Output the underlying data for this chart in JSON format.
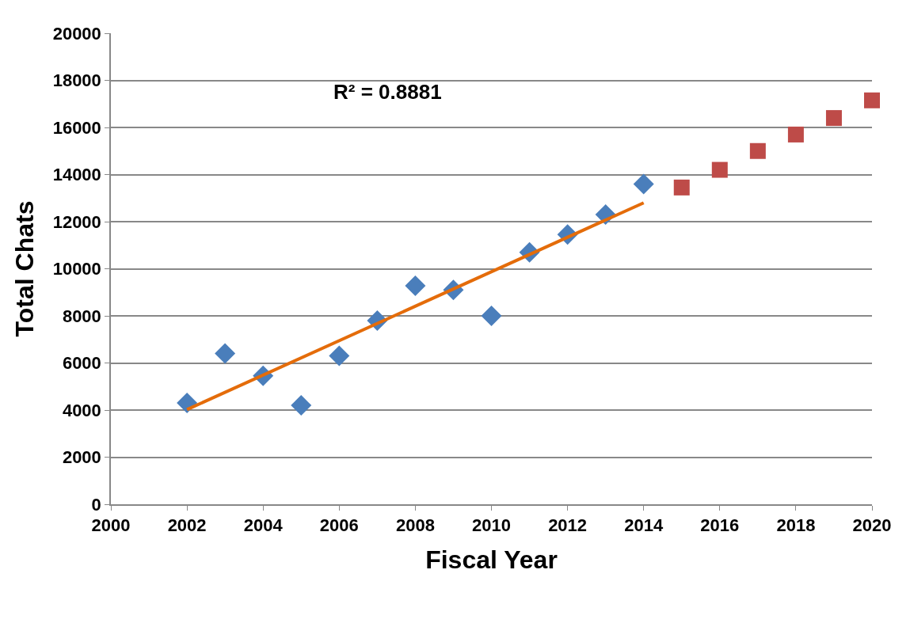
{
  "chart_data": {
    "type": "scatter",
    "xlabel": "Fiscal Year",
    "ylabel": "Total Chats",
    "series": [
      {
        "type": "scatter",
        "marker": "diamond",
        "color": "#4a7ebb",
        "x": [
          2002,
          2003,
          2004,
          2005,
          2006,
          2007,
          2008,
          2009,
          2010,
          2011,
          2012,
          2013,
          2014
        ],
        "values": [
          4300,
          6400,
          5450,
          4200,
          6300,
          7800,
          9280,
          9100,
          8000,
          10700,
          11450,
          12300,
          13600
        ]
      },
      {
        "type": "scatter",
        "marker": "square",
        "color": "#be4b48",
        "x": [
          2015,
          2016,
          2017,
          2018,
          2019,
          2020
        ],
        "values": [
          13450,
          14200,
          15000,
          15700,
          16400,
          17150
        ]
      },
      {
        "type": "line",
        "marker": "none",
        "line_style": "solid",
        "color": "#e46c0a",
        "x": [
          2002,
          2014
        ],
        "values": [
          4020,
          12800
        ]
      }
    ],
    "annotations": [
      "R² = 0.8881"
    ],
    "xlim": [
      2000,
      2020
    ],
    "xticks": [
      2000,
      2002,
      2004,
      2006,
      2008,
      2010,
      2012,
      2014,
      2016,
      2018,
      2020
    ],
    "ylim": [
      0,
      20000
    ],
    "yticks": [
      0,
      2000,
      4000,
      6000,
      8000,
      10000,
      12000,
      14000,
      16000,
      18000,
      20000
    ],
    "grid": "y"
  }
}
